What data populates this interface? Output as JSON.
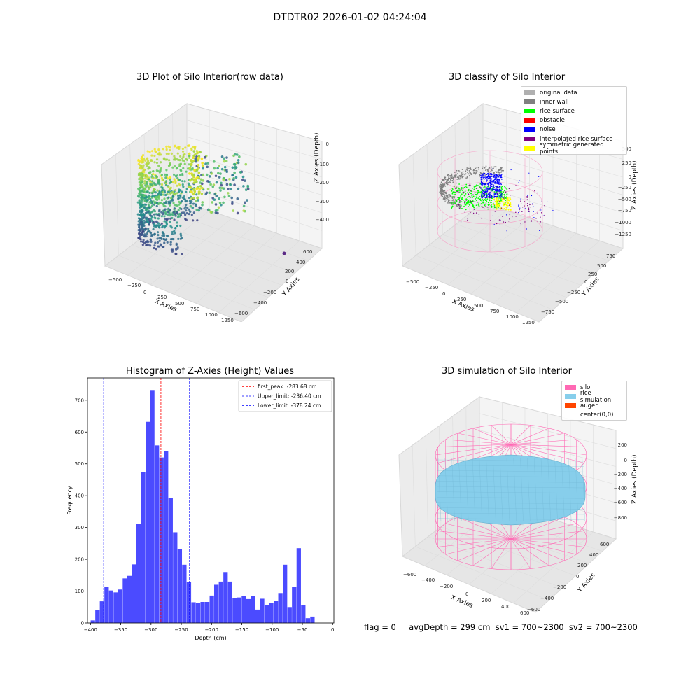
{
  "suptitle": "DTDTR02 2026-01-02 04:24:04",
  "panels": {
    "raw": {
      "title": "3D Plot of Silo Interior(row data)",
      "xlabel": "X Axies",
      "ylabel": "Y Axies",
      "zlabel": "Z Axies (Depth)",
      "xticks": [
        "−500",
        "−250",
        "0",
        "250",
        "500",
        "750",
        "1000",
        "1250"
      ],
      "yticks": [
        "600",
        "400",
        "200",
        "0",
        "−200",
        "−400",
        "−600"
      ],
      "zticks": [
        "0",
        "−100",
        "−200",
        "−300",
        "−400"
      ]
    },
    "classify": {
      "title": "3D classify of Silo Interior",
      "xlabel": "X Axies",
      "ylabel": "Y Axies",
      "zlabel": "Z Axies (Depth)",
      "xticks": [
        "−500",
        "−250",
        "0",
        "250",
        "500",
        "750",
        "1000",
        "1250"
      ],
      "yticks": [
        "750",
        "500",
        "250",
        "0",
        "−250",
        "−500",
        "−750"
      ],
      "zticks": [
        "500",
        "250",
        "0",
        "−250",
        "−500",
        "−750",
        "−1000",
        "−1250"
      ],
      "legend": [
        {
          "label": "original data",
          "color": "#b0b0b0"
        },
        {
          "label": "inner wall",
          "color": "#808080"
        },
        {
          "label": "rice surface",
          "color": "#00ff00"
        },
        {
          "label": "obstacle",
          "color": "#ff0000"
        },
        {
          "label": "noise",
          "color": "#0000ff"
        },
        {
          "label": "interpolated rice surface",
          "color": "#800080"
        },
        {
          "label": "symmetric generated points",
          "color": "#ffff00"
        }
      ]
    },
    "simulation": {
      "title": "3D simulation of Silo Interior",
      "xlabel": "X Axies",
      "ylabel": "Y Axies",
      "zlabel": "Z Axies (Depth)",
      "xticks": [
        "−600",
        "−400",
        "−200",
        "0",
        "200",
        "400",
        "600"
      ],
      "yticks": [
        "600",
        "400",
        "200",
        "0",
        "−200",
        "−400",
        "−600"
      ],
      "zticks": [
        "200",
        "0",
        "−200",
        "−400",
        "−600",
        "−800"
      ],
      "legend": [
        {
          "label": "silo",
          "color": "#ff69b4"
        },
        {
          "label": "rice simulation",
          "color": "#87ceeb"
        },
        {
          "label": "auger",
          "color": "#ff4500"
        },
        {
          "label": "center(0,0)",
          "color": "#ffffff"
        }
      ]
    }
  },
  "footer": {
    "flag": "flag = 0",
    "stats": "avgDepth = 299 cm  sv1 = 700~2300  sv2 = 700~2300"
  },
  "chart_data": {
    "type": "bar",
    "title": "Histogram of Z-Axies (Height) Values",
    "xlabel": "Depth (cm)",
    "ylabel": "Frequency",
    "xlim": [
      -405,
      2
    ],
    "ylim": [
      0,
      770
    ],
    "xticks": [
      -400,
      -350,
      -300,
      -250,
      -200,
      -150,
      -100,
      -50,
      0
    ],
    "yticks": [
      0,
      100,
      200,
      300,
      400,
      500,
      600,
      700
    ],
    "bar_color": "#4b4bff",
    "bin_width": 7.56,
    "bins_start": [
      -399.7,
      -392.1,
      -384.6,
      -377.0,
      -369.5,
      -361.9,
      -354.4,
      -346.8,
      -339.2,
      -331.7,
      -324.1,
      -316.6,
      -309.0,
      -301.5,
      -293.9,
      -286.3,
      -278.8,
      -271.2,
      -263.7,
      -256.1,
      -248.6,
      -241.0,
      -233.4,
      -225.9,
      -218.3,
      -210.8,
      -203.2,
      -195.7,
      -188.1,
      -180.5,
      -173.0,
      -165.4,
      -157.9,
      -150.3,
      -142.8,
      -135.2,
      -127.6,
      -120.1,
      -112.5,
      -105.0,
      -97.4,
      -89.9,
      -82.3,
      -74.7,
      -67.2,
      -59.6,
      -52.1,
      -44.5,
      -37.0,
      -29.4,
      -21.8,
      -14.3,
      -6.7
    ],
    "values": [
      8,
      40,
      68,
      113,
      102,
      96,
      105,
      140,
      148,
      184,
      312,
      475,
      632,
      732,
      558,
      520,
      540,
      392,
      285,
      233,
      183,
      128,
      65,
      62,
      66,
      66,
      86,
      120,
      130,
      160,
      130,
      78,
      80,
      84,
      75,
      84,
      42,
      76,
      57,
      62,
      70,
      94,
      183,
      50,
      113,
      235,
      55,
      15,
      20,
      0,
      0,
      0,
      0
    ],
    "lines": [
      {
        "label": "first_peak: -283.68 cm",
        "x": -283.68,
        "color": "#ff0000"
      },
      {
        "label": "Upper_limit: -236.40 cm",
        "x": -236.4,
        "color": "#0000ff"
      },
      {
        "label": "Lower_limit: -378.24 cm",
        "x": -378.24,
        "color": "#0000ff"
      }
    ]
  }
}
